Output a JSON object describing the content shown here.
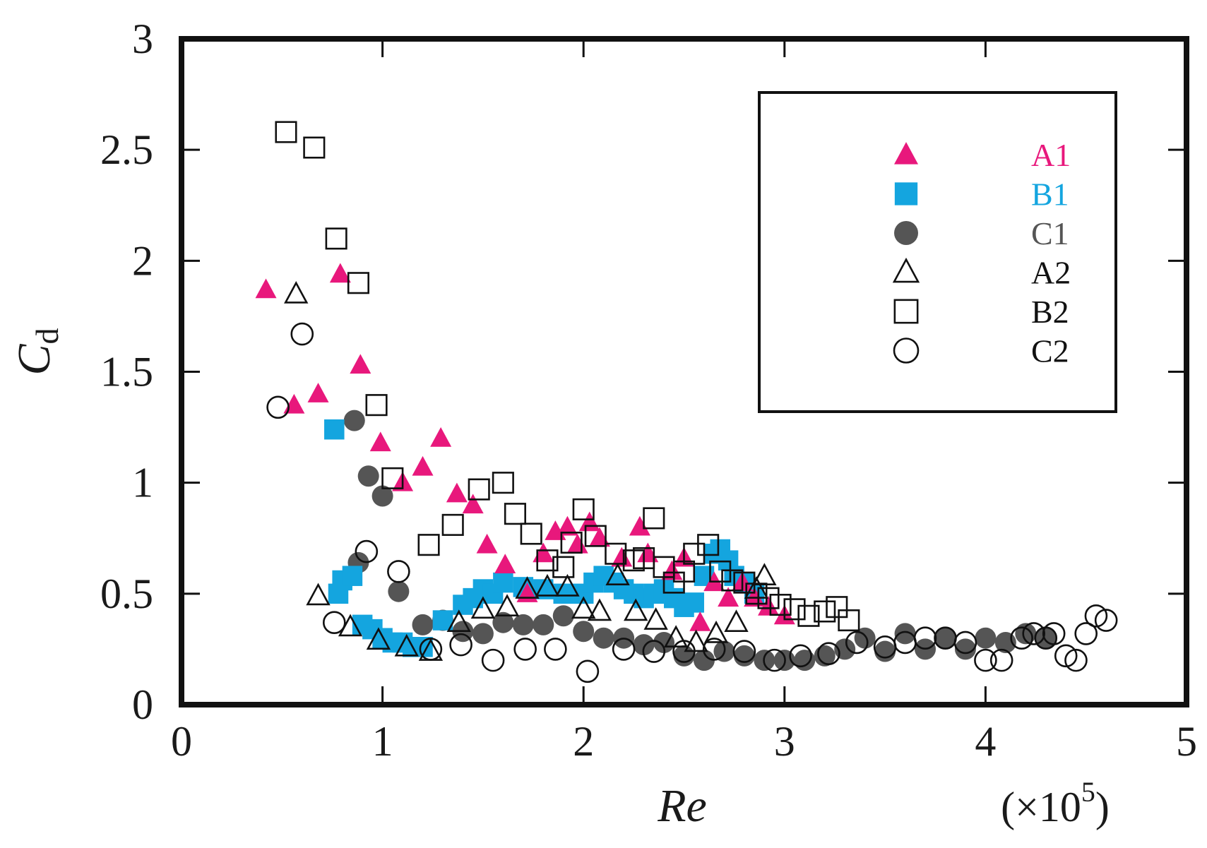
{
  "colors": {
    "A1": "#e8187c",
    "B1": "#14a5df",
    "C1": "#555555",
    "open": "#111111",
    "axis": "#111111"
  },
  "chart_data": {
    "type": "scatter",
    "title": "",
    "xlabel": "Re",
    "xscale_label": "(×10",
    "xscale_exp": "5",
    "xscale_close": ")",
    "ylabel": "C",
    "ylabel_sub": "d",
    "xlim": [
      0,
      5
    ],
    "ylim": [
      0,
      3
    ],
    "xticks": [
      0,
      1,
      2,
      3,
      4,
      5
    ],
    "xtick_labels": [
      "0",
      "1",
      "2",
      "3",
      "4",
      "5"
    ],
    "yticks": [
      0,
      0.5,
      1,
      1.5,
      2,
      2.5,
      3
    ],
    "ytick_labels": [
      "0",
      "0.5",
      "1",
      "1.5",
      "2",
      "2.5",
      "3"
    ],
    "grid": false,
    "legend_position": "top-right",
    "series": [
      {
        "name": "A1",
        "marker": "triangle",
        "filled": true,
        "color": "#e8187c",
        "x": [
          0.42,
          0.56,
          0.68,
          0.79,
          0.89,
          0.99,
          1.1,
          1.2,
          1.29,
          1.37,
          1.45,
          1.52,
          1.61,
          1.72,
          1.8,
          1.86,
          1.92,
          1.97,
          2.03,
          2.08,
          2.19,
          2.28,
          2.32,
          2.44,
          2.5,
          2.58,
          2.65,
          2.72,
          2.79,
          2.85,
          2.92,
          3.0
        ],
        "y": [
          1.87,
          1.35,
          1.4,
          1.94,
          1.53,
          1.18,
          1.0,
          1.07,
          1.2,
          0.95,
          0.9,
          0.72,
          0.63,
          0.5,
          0.68,
          0.78,
          0.8,
          0.72,
          0.82,
          0.75,
          0.66,
          0.8,
          0.68,
          0.6,
          0.66,
          0.37,
          0.55,
          0.48,
          0.55,
          0.48,
          0.44,
          0.4
        ]
      },
      {
        "name": "B1",
        "marker": "square",
        "filled": true,
        "color": "#14a5df",
        "x": [
          0.76,
          0.78,
          0.8,
          0.85,
          0.9,
          0.95,
          1.0,
          1.05,
          1.1,
          1.15,
          1.2,
          1.3,
          1.4,
          1.45,
          1.5,
          1.55,
          1.6,
          1.7,
          1.8,
          1.9,
          2.0,
          2.05,
          2.1,
          2.15,
          2.2,
          2.25,
          2.3,
          2.35,
          2.4,
          2.45,
          2.5,
          2.55,
          2.6,
          2.65,
          2.68,
          2.72,
          2.75,
          2.8,
          2.85
        ],
        "y": [
          1.24,
          0.5,
          0.56,
          0.58,
          0.36,
          0.34,
          0.3,
          0.28,
          0.28,
          0.26,
          0.26,
          0.38,
          0.45,
          0.48,
          0.52,
          0.5,
          0.55,
          0.53,
          0.52,
          0.5,
          0.5,
          0.55,
          0.58,
          0.55,
          0.52,
          0.5,
          0.48,
          0.5,
          0.52,
          0.48,
          0.44,
          0.46,
          0.58,
          0.68,
          0.7,
          0.65,
          0.58,
          0.55,
          0.5
        ]
      },
      {
        "name": "C1",
        "marker": "circle",
        "filled": true,
        "color": "#555555",
        "x": [
          0.86,
          0.88,
          0.93,
          1.0,
          1.08,
          1.2,
          1.3,
          1.4,
          1.5,
          1.6,
          1.7,
          1.8,
          1.9,
          2.0,
          2.1,
          2.2,
          2.3,
          2.4,
          2.5,
          2.6,
          2.7,
          2.8,
          2.9,
          3.0,
          3.1,
          3.2,
          3.3,
          3.4,
          3.5,
          3.6,
          3.7,
          3.8,
          3.9,
          4.0,
          4.1,
          4.2,
          4.3
        ],
        "y": [
          1.28,
          0.64,
          1.03,
          0.94,
          0.51,
          0.36,
          0.38,
          0.33,
          0.32,
          0.37,
          0.36,
          0.36,
          0.4,
          0.33,
          0.3,
          0.3,
          0.27,
          0.28,
          0.22,
          0.2,
          0.24,
          0.22,
          0.2,
          0.2,
          0.2,
          0.22,
          0.25,
          0.3,
          0.24,
          0.32,
          0.25,
          0.3,
          0.25,
          0.3,
          0.28,
          0.32,
          0.3
        ]
      },
      {
        "name": "A2",
        "marker": "triangle",
        "filled": false,
        "color": "#111111",
        "x": [
          0.57,
          0.68,
          0.84,
          0.98,
          1.12,
          1.24,
          1.38,
          1.5,
          1.62,
          1.72,
          1.82,
          1.92,
          2.0,
          2.08,
          2.17,
          2.26,
          2.36,
          2.46,
          2.56,
          2.66,
          2.76,
          2.86,
          2.9
        ],
        "y": [
          1.85,
          0.49,
          0.35,
          0.29,
          0.26,
          0.24,
          0.37,
          0.43,
          0.44,
          0.52,
          0.53,
          0.53,
          0.43,
          0.42,
          0.58,
          0.42,
          0.38,
          0.3,
          0.28,
          0.32,
          0.37,
          0.52,
          0.58
        ]
      },
      {
        "name": "B2",
        "marker": "square",
        "filled": false,
        "color": "#111111",
        "x": [
          0.52,
          0.66,
          0.77,
          0.88,
          0.97,
          1.05,
          1.23,
          1.35,
          1.48,
          1.6,
          1.66,
          1.74,
          1.82,
          1.9,
          1.94,
          2.0,
          2.06,
          2.16,
          2.25,
          2.3,
          2.35,
          2.4,
          2.45,
          2.5,
          2.55,
          2.62,
          2.68,
          2.74,
          2.8,
          2.86,
          2.92,
          2.98,
          3.05,
          3.12,
          3.2,
          3.26,
          3.32
        ],
        "y": [
          2.58,
          2.51,
          2.1,
          1.9,
          1.35,
          1.02,
          0.72,
          0.81,
          0.97,
          1.0,
          0.86,
          0.77,
          0.65,
          0.62,
          0.73,
          0.88,
          0.76,
          0.68,
          0.65,
          0.66,
          0.84,
          0.62,
          0.55,
          0.6,
          0.68,
          0.72,
          0.6,
          0.56,
          0.55,
          0.5,
          0.48,
          0.45,
          0.43,
          0.4,
          0.42,
          0.44,
          0.38
        ]
      },
      {
        "name": "C2",
        "marker": "circle",
        "filled": false,
        "color": "#111111",
        "x": [
          0.48,
          0.6,
          0.76,
          0.92,
          1.08,
          1.24,
          1.39,
          1.55,
          1.71,
          1.86,
          2.02,
          2.2,
          2.35,
          2.5,
          2.65,
          2.8,
          2.95,
          3.08,
          3.22,
          3.36,
          3.5,
          3.6,
          3.7,
          3.8,
          3.9,
          4.0,
          4.08,
          4.18,
          4.24,
          4.3,
          4.34,
          4.4,
          4.45,
          4.5,
          4.55,
          4.6
        ],
        "y": [
          1.34,
          1.67,
          0.37,
          0.69,
          0.6,
          0.25,
          0.27,
          0.2,
          0.25,
          0.25,
          0.15,
          0.25,
          0.24,
          0.24,
          0.25,
          0.24,
          0.2,
          0.22,
          0.23,
          0.28,
          0.26,
          0.28,
          0.3,
          0.3,
          0.28,
          0.2,
          0.2,
          0.3,
          0.32,
          0.3,
          0.32,
          0.22,
          0.2,
          0.32,
          0.4,
          0.38
        ]
      }
    ]
  }
}
